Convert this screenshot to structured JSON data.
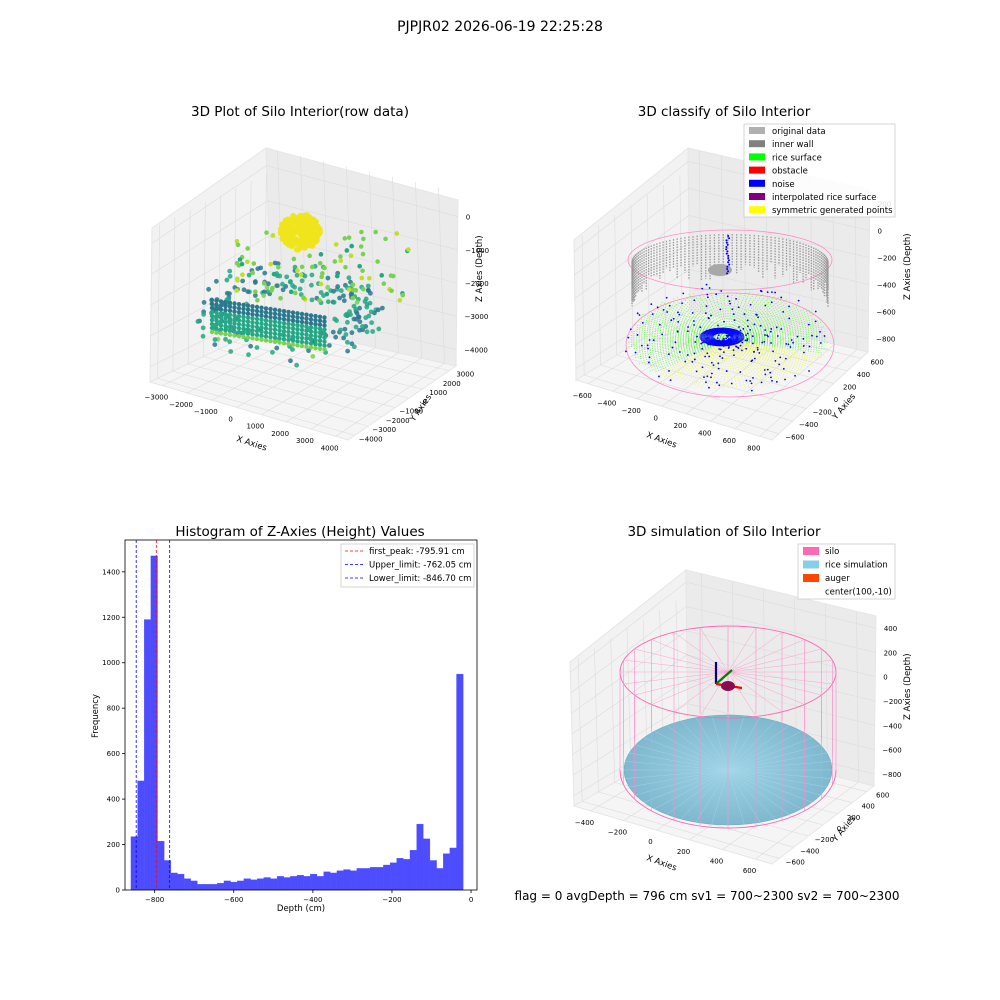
{
  "suptitle": "PJPJR02 2026-06-19 22:25:28",
  "status_text": "flag = 0     avgDepth = 796 cm  sv1 = 700~2300  sv2 = 700~2300",
  "chart_data": [
    {
      "type": "scatter",
      "title": "3D Plot of Silo Interior(row data)",
      "xlabel": "X Axies",
      "ylabel": "Y Axies",
      "zlabel": "Z Axies (Depth)",
      "x_ticks": [
        "−3000",
        "−2000",
        "−1000",
        "0",
        "1000",
        "2000",
        "3000",
        "4000"
      ],
      "y_ticks": [
        "3000",
        "2000",
        "1000",
        "0",
        "−1000",
        "−2000",
        "−3000",
        "−4000"
      ],
      "z_ticks": [
        "0",
        "−1000",
        "−2000",
        "−3000",
        "−4000"
      ],
      "xlim": [
        -3500,
        4500
      ],
      "ylim": [
        -4500,
        3500
      ],
      "zlim": [
        -4500,
        200
      ],
      "colormap": "viridis"
    },
    {
      "type": "scatter",
      "title": "3D classify of Silo Interior",
      "xlabel": "X Axies",
      "ylabel": "Y Axies",
      "zlabel": "Z Axies (Depth)",
      "x_ticks": [
        "−600",
        "−400",
        "−200",
        "0",
        "200",
        "400",
        "600",
        "800"
      ],
      "y_ticks": [
        "600",
        "400",
        "200",
        "0",
        "−200",
        "−400",
        "−600"
      ],
      "z_ticks": [
        "200",
        "0",
        "−200",
        "−400",
        "−600",
        "−800"
      ],
      "legend_position": "top-right",
      "legend": [
        {
          "label": "original data",
          "color": "#b0b0b0"
        },
        {
          "label": "inner wall",
          "color": "#808080"
        },
        {
          "label": "rice surface",
          "color": "#00ff00"
        },
        {
          "label": "obstacle",
          "color": "#ff0000"
        },
        {
          "label": "noise",
          "color": "#0000ff"
        },
        {
          "label": "interpolated rice surface",
          "color": "#800080"
        },
        {
          "label": "symmetric generated points",
          "color": "#ffff00"
        }
      ]
    },
    {
      "type": "bar",
      "title": "Histogram of Z-Axies (Height) Values",
      "xlabel": "Depth (cm)",
      "ylabel": "Frequency",
      "xlim": [
        -875,
        15
      ],
      "ylim": [
        0,
        1540
      ],
      "x_ticks": [
        -800,
        -600,
        -400,
        -200,
        0
      ],
      "x_tick_labels": [
        "−800",
        "−600",
        "−400",
        "−200",
        "0"
      ],
      "y_ticks": [
        0,
        200,
        400,
        600,
        800,
        1000,
        1200,
        1400
      ],
      "bar_color": "#4d4dff",
      "bin_start": -860,
      "bin_width": 16.8,
      "values": [
        235,
        480,
        1190,
        1470,
        215,
        130,
        75,
        70,
        50,
        40,
        25,
        25,
        25,
        30,
        40,
        35,
        40,
        50,
        45,
        50,
        55,
        50,
        60,
        55,
        60,
        65,
        60,
        70,
        60,
        80,
        75,
        85,
        90,
        85,
        95,
        95,
        100,
        100,
        110,
        120,
        140,
        135,
        175,
        290,
        225,
        130,
        95,
        160,
        185,
        950
      ],
      "lines": [
        {
          "label": "first_peak: -795.91 cm",
          "x": -795.91,
          "color": "#ff0000"
        },
        {
          "label": "Upper_limit: -762.05 cm",
          "x": -762.05,
          "color": "#0000ff"
        },
        {
          "label": "Lower_limit: -846.70 cm",
          "x": -846.7,
          "color": "#0000ff"
        }
      ],
      "legend_position": "top-right"
    },
    {
      "type": "scatter",
      "title": "3D simulation of Silo Interior",
      "xlabel": "X Axies",
      "ylabel": "Y Axies",
      "zlabel": "Z Axies (Depth)",
      "x_ticks": [
        "−400",
        "−200",
        "0",
        "200",
        "400",
        "600"
      ],
      "y_ticks": [
        "600",
        "400",
        "200",
        "0",
        "−200",
        "−400",
        "−600"
      ],
      "z_ticks": [
        "400",
        "200",
        "0",
        "−200",
        "−400",
        "−600",
        "−800"
      ],
      "legend_position": "top-right",
      "legend": [
        {
          "label": "silo",
          "color": "#ff69b4"
        },
        {
          "label": "rice simulation",
          "color": "#87ceeb"
        },
        {
          "label": "auger",
          "color": "#ff4500"
        },
        {
          "label": "center(100,-10)",
          "color": "none"
        }
      ]
    }
  ]
}
